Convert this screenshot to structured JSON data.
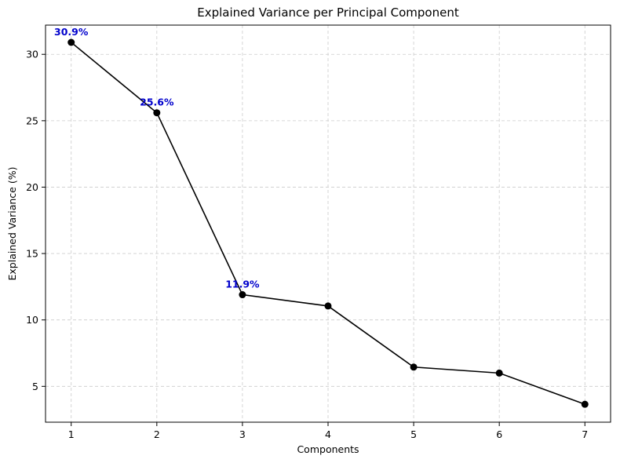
{
  "chart_data": {
    "type": "line",
    "title": "Explained Variance per Principal Component",
    "xlabel": "Components",
    "ylabel": "Explained Variance (%)",
    "x": [
      1,
      2,
      3,
      4,
      5,
      6,
      7
    ],
    "y": [
      30.9,
      25.6,
      11.9,
      11.05,
      6.45,
      6.0,
      3.65
    ],
    "xlim": [
      0.7,
      7.3
    ],
    "ylim": [
      2.3,
      32.2
    ],
    "xticks": [
      1,
      2,
      3,
      4,
      5,
      6,
      7
    ],
    "yticks": [
      5,
      10,
      15,
      20,
      25,
      30
    ],
    "grid": true,
    "line_color": "#000000",
    "marker": "circle",
    "annotations": [
      {
        "x": 1,
        "y": 30.9,
        "text": "30.9%"
      },
      {
        "x": 2,
        "y": 25.6,
        "text": "25.6%"
      },
      {
        "x": 3,
        "y": 11.9,
        "text": "11.9%"
      }
    ],
    "annotation_color": "#0000cc",
    "grid_color": "#cccccc"
  }
}
